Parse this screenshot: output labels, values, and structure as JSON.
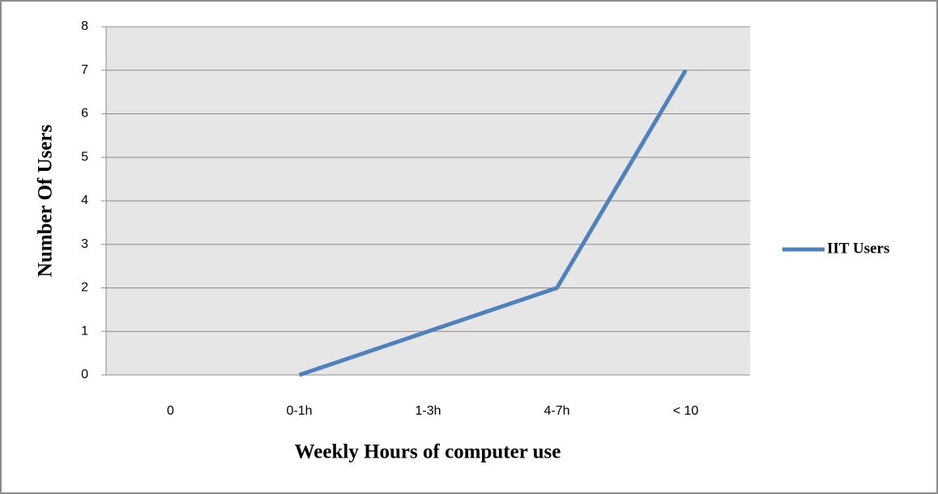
{
  "chart_data": {
    "type": "line",
    "categories": [
      "0",
      "0-1h",
      "1-3h",
      "4-7h",
      "< 10"
    ],
    "series": [
      {
        "name": "IIT Users",
        "color": "#4f81bd",
        "values": [
          null,
          0,
          1,
          2,
          7
        ]
      }
    ],
    "xlabel": "Weekly Hours of computer use",
    "ylabel": "Number Of Users",
    "ylim": [
      0,
      8
    ],
    "yticks": [
      0,
      1,
      2,
      3,
      4,
      5,
      6,
      7,
      8
    ],
    "grid": true,
    "legend": "right"
  }
}
